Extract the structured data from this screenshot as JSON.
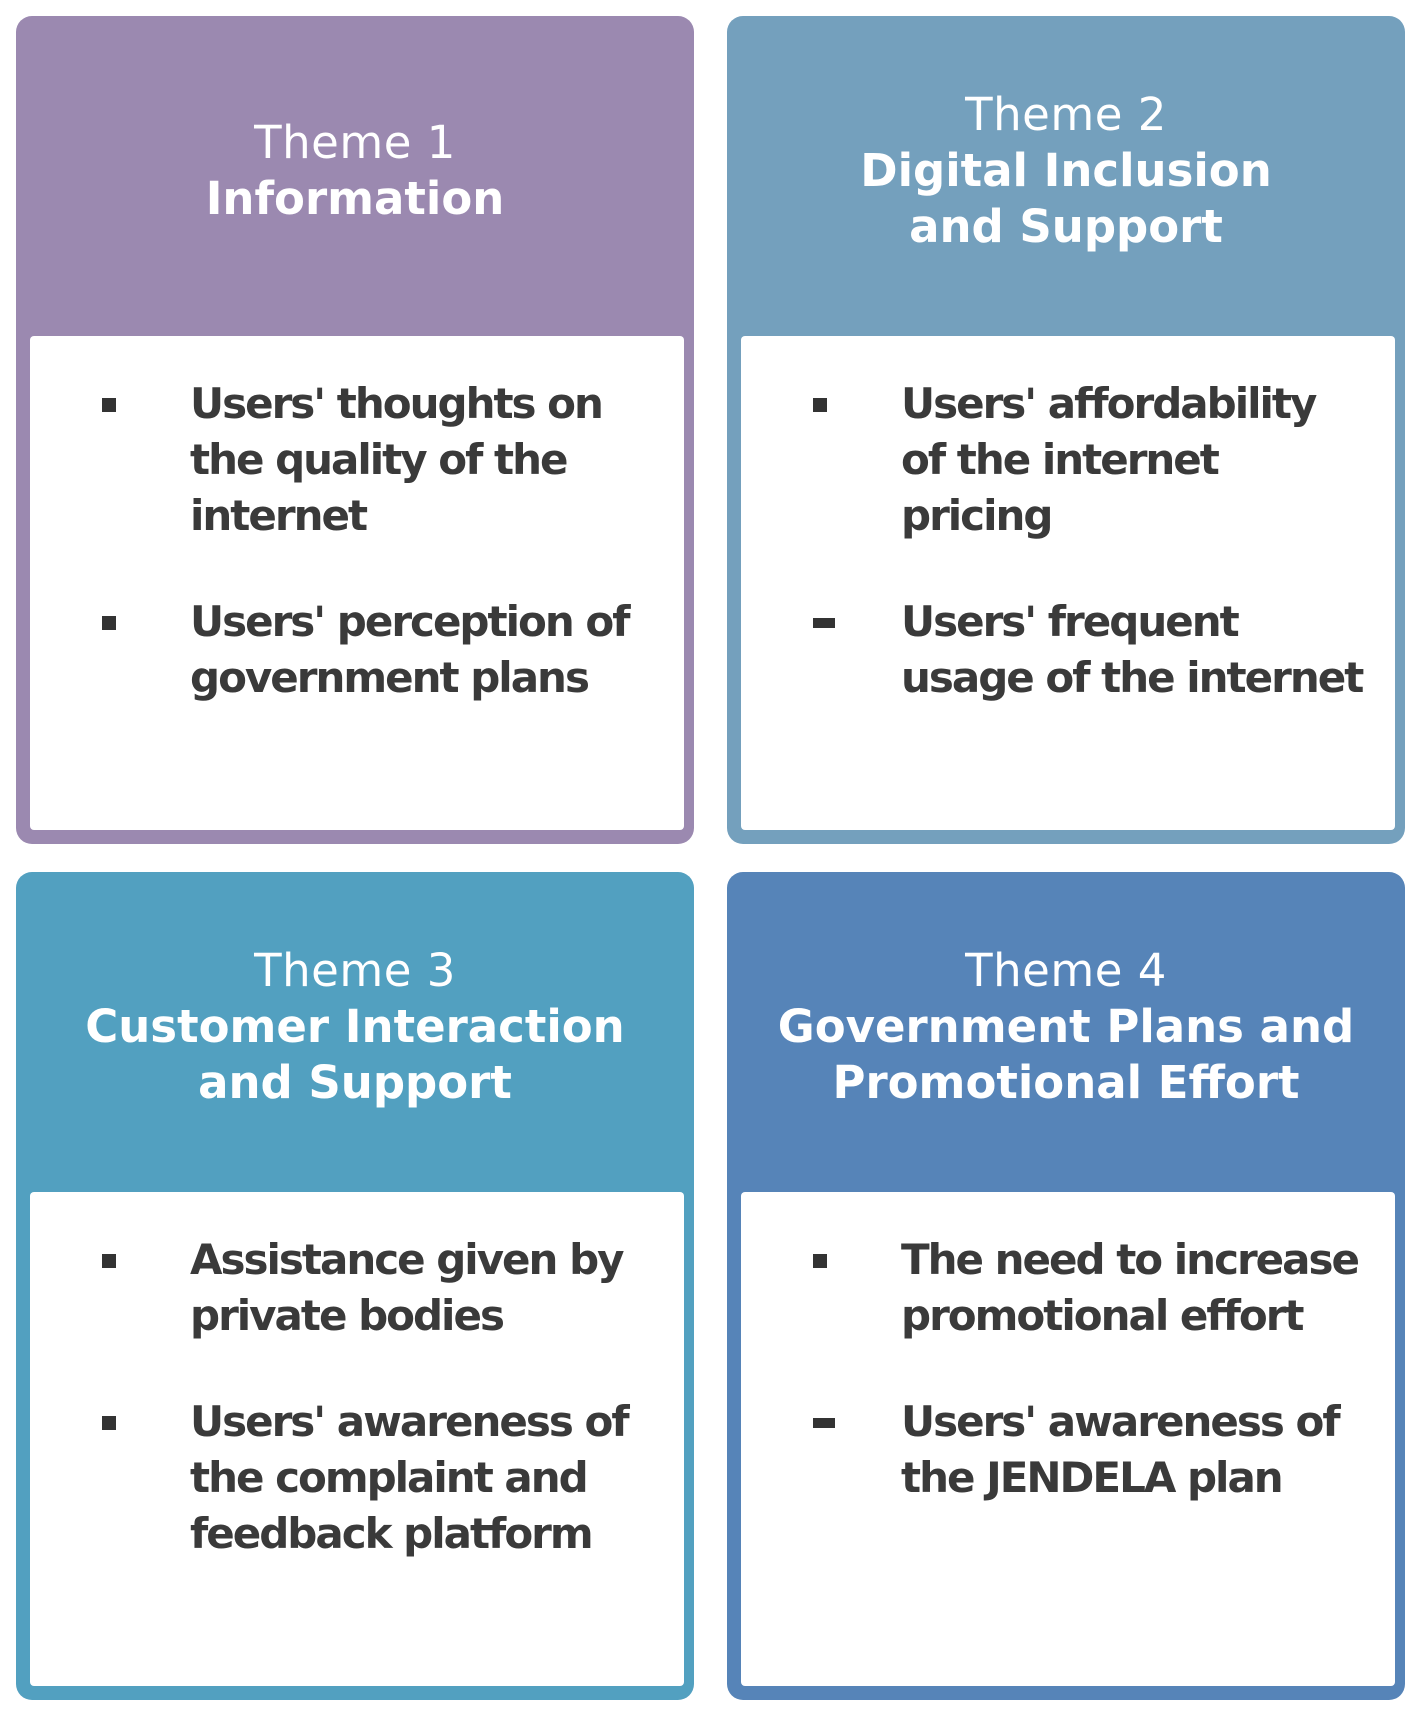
{
  "themes": [
    {
      "number": "Theme 1",
      "name": "Information",
      "color": "#9b89b0",
      "items": [
        "Users' thoughts on the quality of the internet",
        "Users' perception of government plans"
      ]
    },
    {
      "number": "Theme 2",
      "name": "Digital Inclusion\nand Support",
      "color": "#74a0bd",
      "items": [
        "Users' affordability of the internet pricing",
        "Users' frequent usage of the internet"
      ]
    },
    {
      "number": "Theme 3",
      "name": "Customer Interaction\nand Support",
      "color": "#52a0c0",
      "items": [
        "Assistance given by private bodies",
        "Users' awareness of the complaint and feedback platform"
      ]
    },
    {
      "number": "Theme 4",
      "name": "Government Plans and\nPromotional Effort",
      "color": "#5684b8",
      "items": [
        "The need to increase promotional effort",
        "Users' awareness of the JENDELA plan"
      ]
    }
  ]
}
